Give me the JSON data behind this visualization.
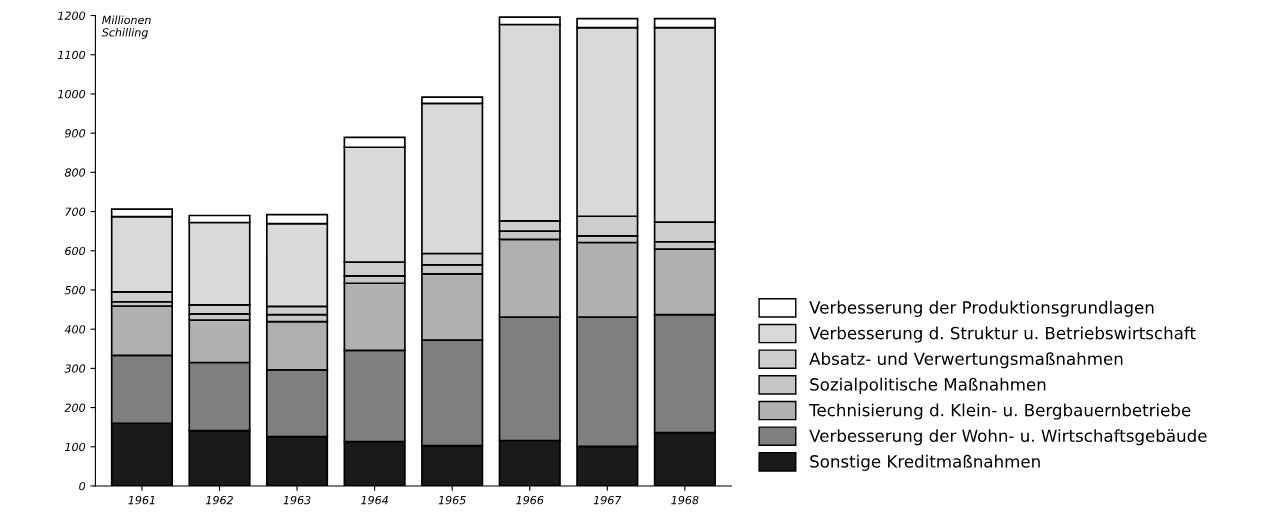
{
  "chart_data": {
    "type": "bar",
    "stacked": true,
    "ylabel": "Millionen\nSchilling",
    "categories": [
      "1961",
      "1962",
      "1963",
      "1964",
      "1965",
      "1966",
      "1967",
      "1968"
    ],
    "series": [
      {
        "name": "Sonstige Kreditmaßnahmen",
        "color": "#1a1a1a",
        "values": [
          160,
          141,
          126,
          113,
          103,
          116,
          101,
          136
        ]
      },
      {
        "name": "Verbesserung der Wohn- u. Wirtschaftsgebäude",
        "color": "#7f7f7f",
        "values": [
          173,
          174,
          170,
          233,
          269,
          315,
          330,
          301
        ]
      },
      {
        "name": "Technisierung d. Klein- u. Bergbauernbetriebe",
        "color": "#b0b0b0",
        "values": [
          126,
          108,
          123,
          171,
          169,
          198,
          190,
          167
        ]
      },
      {
        "name": "Sozialpolitische Maßnahmen",
        "color": "#c6c6c6",
        "values": [
          11,
          16,
          18,
          19,
          23,
          21,
          17,
          19
        ]
      },
      {
        "name": "Absatz- und Verwertungsmaßnahmen",
        "color": "#cdcdcd",
        "values": [
          25,
          23,
          21,
          35,
          29,
          26,
          50,
          50
        ]
      },
      {
        "name": "Verbesserung d. Struktur u. Betriebswirtschaft",
        "color": "#d9d9d9",
        "values": [
          192,
          210,
          211,
          293,
          383,
          501,
          481,
          496
        ]
      },
      {
        "name": "Verbesserung der Produktionsgrundlagen",
        "color": "#ffffff",
        "values": [
          19,
          18,
          23,
          25,
          16,
          19,
          23,
          23
        ]
      }
    ],
    "ylim": [
      0,
      1200
    ],
    "yticks": [
      0,
      100,
      200,
      300,
      400,
      500,
      600,
      700,
      800,
      900,
      1000,
      1100,
      1200
    ],
    "legend": "right",
    "grid": false
  }
}
